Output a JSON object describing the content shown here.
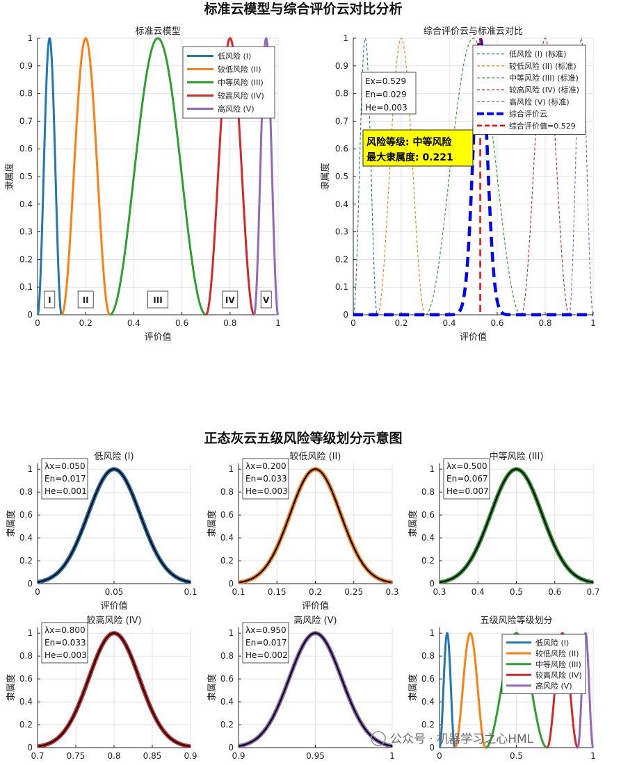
{
  "figure": {
    "title_top": "标准云模型与综合评价云对比分析",
    "title_bottom": "正态灰云五级风险等级划分示意图",
    "watermark": "公众号 · 机器学习之心HML",
    "colors": {
      "I": "#1f77b4",
      "II": "#ff7f0e",
      "III": "#2ca02c",
      "IV": "#d62728",
      "V": "#9467bd",
      "eval": "#0000ff",
      "evalValue": "#ff0000",
      "highlight": "#ffff00"
    }
  },
  "chart_data": [
    {
      "id": "standard",
      "type": "line",
      "title": "标准云模型",
      "xlabel": "评价值",
      "ylabel": "隶属度",
      "xlim": [
        0,
        1
      ],
      "ylim": [
        0,
        1
      ],
      "xticks": [
        "0",
        "0.2",
        "0.4",
        "0.6",
        "0.8",
        "1"
      ],
      "yticks": [
        "0",
        "0.1",
        "0.2",
        "0.3",
        "0.4",
        "0.5",
        "0.6",
        "0.7",
        "0.8",
        "0.9",
        "1"
      ],
      "grid": true,
      "legend_position": "top-right",
      "series": [
        {
          "name": "低风险 (I)",
          "color": "#1f77b4",
          "Ex": 0.05,
          "range": [
            0,
            0.1
          ]
        },
        {
          "name": "较低风险 (II)",
          "color": "#ff7f0e",
          "Ex": 0.2,
          "range": [
            0.1,
            0.3
          ]
        },
        {
          "name": "中等风险 (III)",
          "color": "#2ca02c",
          "Ex": 0.5,
          "range": [
            0.3,
            0.7
          ]
        },
        {
          "name": "较高风险 (IV)",
          "color": "#d62728",
          "Ex": 0.8,
          "range": [
            0.7,
            0.9
          ]
        },
        {
          "name": "高风险 (V)",
          "color": "#9467bd",
          "Ex": 0.95,
          "range": [
            0.9,
            1.0
          ]
        }
      ],
      "level_labels": [
        {
          "text": "I",
          "x": 0.05
        },
        {
          "text": "II",
          "x": 0.2
        },
        {
          "text": "III",
          "x": 0.5
        },
        {
          "text": "IV",
          "x": 0.8
        },
        {
          "text": "V",
          "x": 0.95
        }
      ]
    },
    {
      "id": "comparison",
      "type": "line",
      "title": "综合评价云与标准云对比",
      "xlabel": "评价值",
      "ylabel": "隶属度",
      "xlim": [
        0,
        1
      ],
      "ylim": [
        0,
        1
      ],
      "xticks": [
        "0",
        "0.2",
        "0.4",
        "0.6",
        "0.8",
        "1"
      ],
      "yticks": [
        "0",
        "0.1",
        "0.2",
        "0.3",
        "0.4",
        "0.5",
        "0.6",
        "0.7",
        "0.8",
        "0.9",
        "1"
      ],
      "grid": true,
      "legend_position": "top-right",
      "series": [
        {
          "name": "低风险 (I) (标准)",
          "color": "#1f77b4",
          "Ex": 0.05,
          "range": [
            0,
            0.1
          ],
          "style": "dashed"
        },
        {
          "name": "较低风险 (II) (标准)",
          "color": "#ff7f0e",
          "Ex": 0.2,
          "range": [
            0.1,
            0.3
          ],
          "style": "dashed"
        },
        {
          "name": "中等风险 (III) (标准)",
          "color": "#2ca02c",
          "Ex": 0.5,
          "range": [
            0.3,
            0.7
          ],
          "style": "dashed"
        },
        {
          "name": "较高风险 (IV) (标准)",
          "color": "#d62728",
          "Ex": 0.8,
          "range": [
            0.7,
            0.9
          ],
          "style": "dashed"
        },
        {
          "name": "高风险 (V) (标准)",
          "color": "#9467bd",
          "Ex": 0.95,
          "range": [
            0.9,
            1.0
          ],
          "style": "dashed"
        },
        {
          "name": "综合评价云",
          "color": "#0000ff",
          "Ex": 0.529,
          "En": 0.029,
          "He": 0.003,
          "style": "thick-dashed"
        },
        {
          "name": "综合评价值=0.529",
          "color": "#ff0000",
          "x": 0.529,
          "style": "vline-dashed"
        }
      ],
      "info_lines": [
        "Ex=0.529",
        "En=0.029",
        "He=0.003"
      ],
      "highlight_lines": [
        "风险等级: 中等风险",
        "最大隶属度: 0.221"
      ]
    },
    {
      "id": "I",
      "type": "line",
      "title": "低风险 (I)",
      "xlabel": "评价值",
      "ylabel": "隶属度",
      "xlim": [
        0,
        0.1
      ],
      "ylim": [
        0,
        1.05
      ],
      "xticks": [
        "0",
        "0.05",
        "0.1"
      ],
      "yticks": [
        "0",
        "0.2",
        "0.4",
        "0.6",
        "0.8",
        "1"
      ],
      "Ex": 0.05,
      "En": 0.017,
      "He": 0.001,
      "color": "#1f77b4",
      "info_lines": [
        "λx=0.050",
        "En=0.017",
        "He=0.001"
      ]
    },
    {
      "id": "II",
      "type": "line",
      "title": "较低风险 (II)",
      "xlabel": "评价值",
      "ylabel": "隶属度",
      "xlim": [
        0.1,
        0.3
      ],
      "ylim": [
        0,
        1.05
      ],
      "xticks": [
        "0.1",
        "0.15",
        "0.2",
        "0.25",
        "0.3"
      ],
      "yticks": [
        "0",
        "0.2",
        "0.4",
        "0.6",
        "0.8",
        "1"
      ],
      "Ex": 0.2,
      "En": 0.033,
      "He": 0.003,
      "color": "#ff7f0e",
      "info_lines": [
        "λx=0.200",
        "En=0.033",
        "He=0.003"
      ]
    },
    {
      "id": "III",
      "type": "line",
      "title": "中等风险 (III)",
      "xlabel": "",
      "ylabel": "隶属度",
      "xlim": [
        0.3,
        0.7
      ],
      "ylim": [
        0,
        1.05
      ],
      "xticks": [
        "0.3",
        "0.4",
        "0.5",
        "0.6",
        "0.7"
      ],
      "yticks": [
        "0",
        "0.2",
        "0.4",
        "0.6",
        "0.8",
        "1"
      ],
      "Ex": 0.5,
      "En": 0.067,
      "He": 0.007,
      "color": "#2ca02c",
      "info_lines": [
        "λx=0.500",
        "En=0.067",
        "He=0.007"
      ]
    },
    {
      "id": "IV",
      "type": "line",
      "title": "较高风险 (IV)",
      "xlabel": "",
      "ylabel": "隶属度",
      "xlim": [
        0.7,
        0.9
      ],
      "ylim": [
        0,
        1.05
      ],
      "xticks": [
        "0.7",
        "0.75",
        "0.8",
        "0.85",
        "0.9"
      ],
      "yticks": [
        "0",
        "0.2",
        "0.4",
        "0.6",
        "0.8",
        "1"
      ],
      "Ex": 0.8,
      "En": 0.033,
      "He": 0.003,
      "color": "#d62728",
      "info_lines": [
        "λx=0.800",
        "En=0.033",
        "He=0.003"
      ]
    },
    {
      "id": "V",
      "type": "line",
      "title": "高风险 (V)",
      "xlabel": "",
      "ylabel": "隶属度",
      "xlim": [
        0.9,
        1.0
      ],
      "ylim": [
        0,
        1.05
      ],
      "xticks": [
        "0.9",
        "0.95",
        "1"
      ],
      "yticks": [
        "0",
        "0.2",
        "0.4",
        "0.6",
        "0.8",
        "1"
      ],
      "Ex": 0.95,
      "En": 0.017,
      "He": 0.002,
      "color": "#9467bd",
      "info_lines": [
        "λx=0.950",
        "En=0.017",
        "He=0.002"
      ]
    },
    {
      "id": "all",
      "type": "line",
      "title": "五级风险等级划分",
      "xlabel": "",
      "ylabel": "隶属度",
      "xlim": [
        0,
        1
      ],
      "ylim": [
        0,
        1.05
      ],
      "xticks": [
        "0",
        "0.5",
        "1"
      ],
      "yticks": [
        "0",
        "0.2",
        "0.4",
        "0.6",
        "0.8",
        "1"
      ],
      "legend_position": "top-right",
      "series": [
        {
          "name": "低风险 (I)",
          "color": "#1f77b4",
          "Ex": 0.05,
          "range": [
            0,
            0.1
          ]
        },
        {
          "name": "较低风险 (II)",
          "color": "#ff7f0e",
          "Ex": 0.2,
          "range": [
            0.1,
            0.3
          ]
        },
        {
          "name": "中等风险 (III)",
          "color": "#2ca02c",
          "Ex": 0.5,
          "range": [
            0.3,
            0.7
          ]
        },
        {
          "name": "较高风险 (IV)",
          "color": "#d62728",
          "Ex": 0.8,
          "range": [
            0.7,
            0.9
          ]
        },
        {
          "name": "高风险 (V)",
          "color": "#9467bd",
          "Ex": 0.95,
          "range": [
            0.9,
            1.0
          ]
        }
      ]
    }
  ]
}
